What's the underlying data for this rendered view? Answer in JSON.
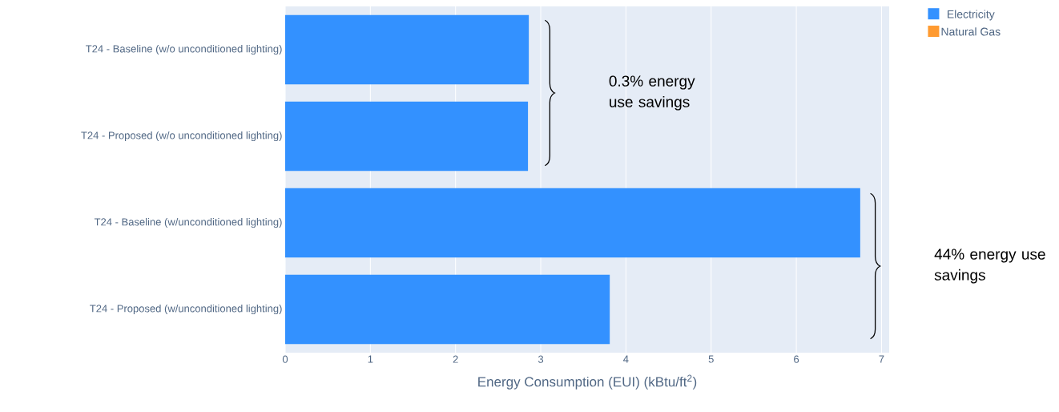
{
  "chart_data": {
    "type": "bar",
    "orientation": "horizontal",
    "stacked": true,
    "categories": [
      "T24 - Baseline (w/o unconditioned lighting)",
      "T24 - Proposed (w/o unconditioned lighting)",
      "T24 - Baseline (w/unconditioned lighting)",
      "T24 - Proposed (w/unconditioned lighting)"
    ],
    "series": [
      {
        "name": "Electricity",
        "color": "#3391ff",
        "values": [
          2.86,
          2.85,
          6.75,
          3.81
        ]
      },
      {
        "name": "Natural Gas",
        "color": "#ff9a30",
        "values": [
          0,
          0,
          0,
          0
        ]
      }
    ],
    "xlabel": "Energy Consumption (EUI) (kBtu/ft$^{2}$)",
    "xlim": [
      0,
      7.09
    ],
    "xticks": [
      0,
      1,
      2,
      3,
      4,
      5,
      6,
      7
    ],
    "grid": "x",
    "legend": "top right",
    "annotations": [
      "0.3% energy use savings",
      "44% energy use savings"
    ]
  }
}
